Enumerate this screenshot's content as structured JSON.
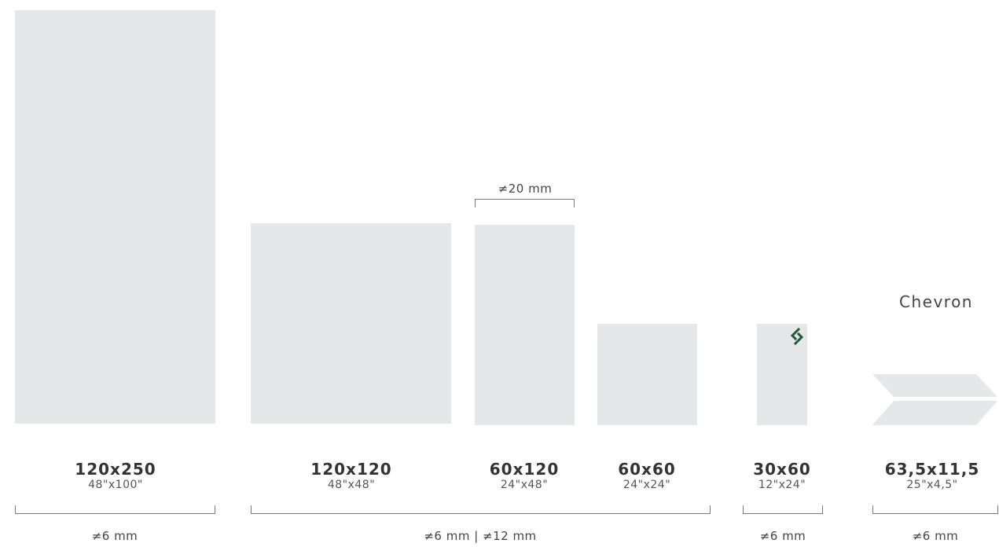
{
  "colors": {
    "tile": "#e6e7e8",
    "text": "#333333",
    "line": "#7a7a7a",
    "logo": "#1f5c3a"
  },
  "tiles": [
    {
      "size": "120x250",
      "inches": "48\"x100\""
    },
    {
      "size": "120x120",
      "inches": "48\"x48\""
    },
    {
      "size": "60x120",
      "inches": "24\"x48\""
    },
    {
      "size": "60x60",
      "inches": "24\"x24\""
    },
    {
      "size": "30x60",
      "inches": "12\"x24\""
    },
    {
      "size": "63,5x11,5",
      "inches": "25\"x4,5\""
    }
  ],
  "thickness_top": "≠20 mm",
  "chevron_title": "Chevron",
  "joints": [
    "≠6 mm",
    "≠6 mm | ≠12 mm",
    "≠6 mm",
    "≠6 mm"
  ],
  "icons": {
    "brand_logo": "brand-logo-icon",
    "chevron": "chevron-tile-icon"
  }
}
